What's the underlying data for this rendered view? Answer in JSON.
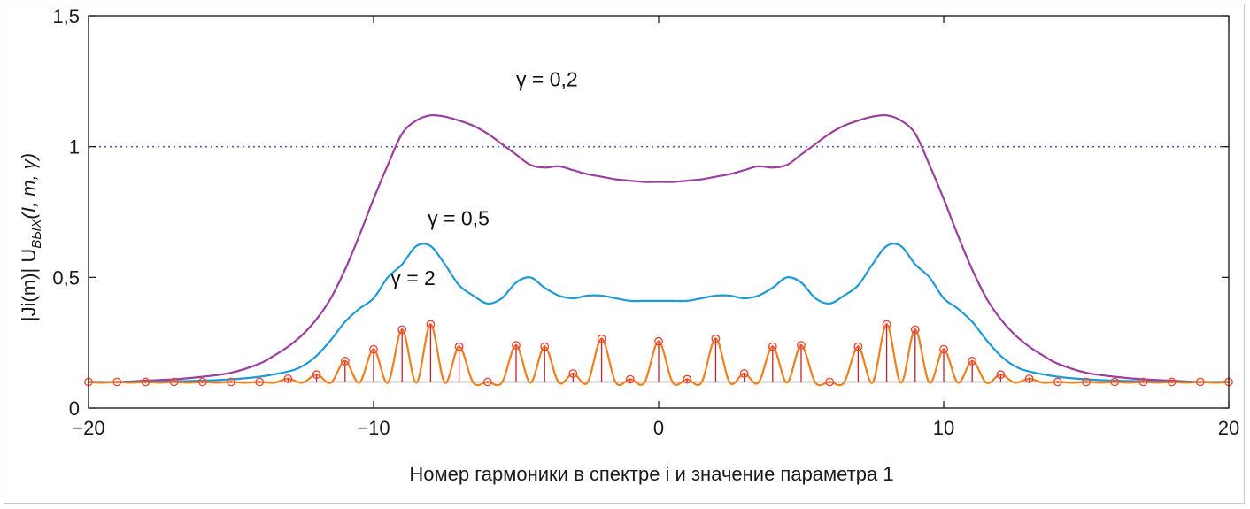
{
  "chart_data": {
    "type": "line",
    "title": "",
    "xlabel": "Номер гармоники в спектре i  и значение параметра 1",
    "ylabel": {
      "prefix": "|Ji(m)| U",
      "subscript": "ВЫХ",
      "suffix": "(I, m, γ)"
    },
    "xlim": [
      -20,
      20
    ],
    "ylim": [
      0,
      1.5
    ],
    "x_ticks": [
      {
        "value": -20,
        "label": "−20"
      },
      {
        "value": -10,
        "label": "−10"
      },
      {
        "value": 0,
        "label": "0"
      },
      {
        "value": 10,
        "label": "10"
      },
      {
        "value": 20,
        "label": "20"
      }
    ],
    "y_ticks": [
      {
        "value": 0,
        "label": "0"
      },
      {
        "value": 0.5,
        "label": "0,5"
      },
      {
        "value": 1,
        "label": "1"
      },
      {
        "value": 1.5,
        "label": "1,5"
      }
    ],
    "grid": false,
    "reference_line": {
      "y": 1.0,
      "color": "#4a5fa8",
      "style": "dotted"
    },
    "baseline": 0.1,
    "series": [
      {
        "name": "γ = 0,2",
        "color": "#9b3f9e",
        "label_at": {
          "x": -5,
          "y": 1.23
        },
        "points": [
          [
            -20,
            0.1
          ],
          [
            -19,
            0.1
          ],
          [
            -18,
            0.105
          ],
          [
            -17,
            0.11
          ],
          [
            -16,
            0.12
          ],
          [
            -15,
            0.135
          ],
          [
            -14,
            0.17
          ],
          [
            -13.5,
            0.2
          ],
          [
            -13,
            0.235
          ],
          [
            -12.5,
            0.28
          ],
          [
            -12,
            0.34
          ],
          [
            -11.5,
            0.42
          ],
          [
            -11,
            0.53
          ],
          [
            -10.5,
            0.66
          ],
          [
            -10,
            0.8
          ],
          [
            -9.5,
            0.93
          ],
          [
            -9,
            1.05
          ],
          [
            -8.5,
            1.1
          ],
          [
            -8,
            1.12
          ],
          [
            -7.5,
            1.115
          ],
          [
            -7,
            1.1
          ],
          [
            -6.5,
            1.08
          ],
          [
            -6,
            1.05
          ],
          [
            -5.5,
            1.01
          ],
          [
            -5,
            0.97
          ],
          [
            -4.5,
            0.93
          ],
          [
            -4,
            0.92
          ],
          [
            -3.5,
            0.925
          ],
          [
            -3,
            0.91
          ],
          [
            -2.5,
            0.895
          ],
          [
            -2,
            0.885
          ],
          [
            -1.5,
            0.875
          ],
          [
            -1,
            0.87
          ],
          [
            -0.5,
            0.865
          ],
          [
            0,
            0.865
          ],
          [
            0.5,
            0.865
          ],
          [
            1,
            0.87
          ],
          [
            1.5,
            0.875
          ],
          [
            2,
            0.885
          ],
          [
            2.5,
            0.895
          ],
          [
            3,
            0.91
          ],
          [
            3.5,
            0.925
          ],
          [
            4,
            0.92
          ],
          [
            4.5,
            0.93
          ],
          [
            5,
            0.97
          ],
          [
            5.5,
            1.01
          ],
          [
            6,
            1.05
          ],
          [
            6.5,
            1.08
          ],
          [
            7,
            1.1
          ],
          [
            7.5,
            1.115
          ],
          [
            8,
            1.12
          ],
          [
            8.5,
            1.1
          ],
          [
            9,
            1.05
          ],
          [
            9.5,
            0.93
          ],
          [
            10,
            0.8
          ],
          [
            10.5,
            0.66
          ],
          [
            11,
            0.53
          ],
          [
            11.5,
            0.42
          ],
          [
            12,
            0.34
          ],
          [
            12.5,
            0.28
          ],
          [
            13,
            0.235
          ],
          [
            13.5,
            0.2
          ],
          [
            14,
            0.17
          ],
          [
            15,
            0.135
          ],
          [
            16,
            0.12
          ],
          [
            17,
            0.11
          ],
          [
            18,
            0.105
          ],
          [
            19,
            0.1
          ],
          [
            20,
            0.1
          ]
        ]
      },
      {
        "name": "γ = 0,5",
        "color": "#1f9ad6",
        "label_at": {
          "x": -8.1,
          "y": 0.7
        },
        "points": [
          [
            -20,
            0.1
          ],
          [
            -18,
            0.1
          ],
          [
            -16,
            0.105
          ],
          [
            -15,
            0.11
          ],
          [
            -14,
            0.12
          ],
          [
            -13,
            0.14
          ],
          [
            -12.5,
            0.16
          ],
          [
            -12,
            0.2
          ],
          [
            -11.5,
            0.26
          ],
          [
            -11,
            0.33
          ],
          [
            -10.5,
            0.38
          ],
          [
            -10,
            0.42
          ],
          [
            -9.5,
            0.5
          ],
          [
            -9,
            0.55
          ],
          [
            -8.5,
            0.62
          ],
          [
            -8,
            0.62
          ],
          [
            -7.5,
            0.55
          ],
          [
            -7,
            0.47
          ],
          [
            -6.5,
            0.43
          ],
          [
            -6,
            0.4
          ],
          [
            -5.5,
            0.42
          ],
          [
            -5,
            0.48
          ],
          [
            -4.5,
            0.5
          ],
          [
            -4,
            0.46
          ],
          [
            -3.5,
            0.43
          ],
          [
            -3,
            0.42
          ],
          [
            -2.5,
            0.43
          ],
          [
            -2,
            0.43
          ],
          [
            -1.5,
            0.42
          ],
          [
            -1,
            0.41
          ],
          [
            -0.5,
            0.41
          ],
          [
            0,
            0.41
          ],
          [
            0.5,
            0.41
          ],
          [
            1,
            0.41
          ],
          [
            1.5,
            0.42
          ],
          [
            2,
            0.43
          ],
          [
            2.5,
            0.43
          ],
          [
            3,
            0.42
          ],
          [
            3.5,
            0.43
          ],
          [
            4,
            0.46
          ],
          [
            4.5,
            0.5
          ],
          [
            5,
            0.48
          ],
          [
            5.5,
            0.42
          ],
          [
            6,
            0.4
          ],
          [
            6.5,
            0.43
          ],
          [
            7,
            0.47
          ],
          [
            7.5,
            0.55
          ],
          [
            8,
            0.62
          ],
          [
            8.5,
            0.62
          ],
          [
            9,
            0.55
          ],
          [
            9.5,
            0.5
          ],
          [
            10,
            0.42
          ],
          [
            10.5,
            0.38
          ],
          [
            11,
            0.33
          ],
          [
            11.5,
            0.26
          ],
          [
            12,
            0.2
          ],
          [
            12.5,
            0.16
          ],
          [
            13,
            0.14
          ],
          [
            14,
            0.12
          ],
          [
            15,
            0.11
          ],
          [
            16,
            0.105
          ],
          [
            18,
            0.1
          ],
          [
            20,
            0.1
          ]
        ]
      },
      {
        "name": "γ = 2",
        "color": "#f07f1d",
        "label_at": {
          "x": -9.4,
          "y": 0.47
        },
        "stem_color": "#c61f2f",
        "marker_color": "#e84b3c",
        "stems": [
          [
            -20,
            0.1
          ],
          [
            -19,
            0.1
          ],
          [
            -18,
            0.1
          ],
          [
            -17,
            0.1
          ],
          [
            -16,
            0.1
          ],
          [
            -15,
            0.1
          ],
          [
            -14,
            0.1
          ],
          [
            -13,
            0.112
          ],
          [
            -12,
            0.128
          ],
          [
            -11,
            0.18
          ],
          [
            -10,
            0.225
          ],
          [
            -9,
            0.3
          ],
          [
            -8,
            0.32
          ],
          [
            -7,
            0.235
          ],
          [
            -6,
            0.1
          ],
          [
            -5,
            0.24
          ],
          [
            -4,
            0.235
          ],
          [
            -3,
            0.132
          ],
          [
            -2,
            0.265
          ],
          [
            -1,
            0.11
          ],
          [
            0,
            0.255
          ],
          [
            1,
            0.11
          ],
          [
            2,
            0.265
          ],
          [
            3,
            0.132
          ],
          [
            4,
            0.235
          ],
          [
            5,
            0.24
          ],
          [
            6,
            0.1
          ],
          [
            7,
            0.235
          ],
          [
            8,
            0.32
          ],
          [
            9,
            0.3
          ],
          [
            10,
            0.225
          ],
          [
            11,
            0.18
          ],
          [
            12,
            0.128
          ],
          [
            13,
            0.112
          ],
          [
            14,
            0.1
          ],
          [
            15,
            0.1
          ],
          [
            16,
            0.1
          ],
          [
            17,
            0.1
          ],
          [
            18,
            0.1
          ],
          [
            19,
            0.1
          ],
          [
            20,
            0.1
          ]
        ]
      }
    ]
  }
}
